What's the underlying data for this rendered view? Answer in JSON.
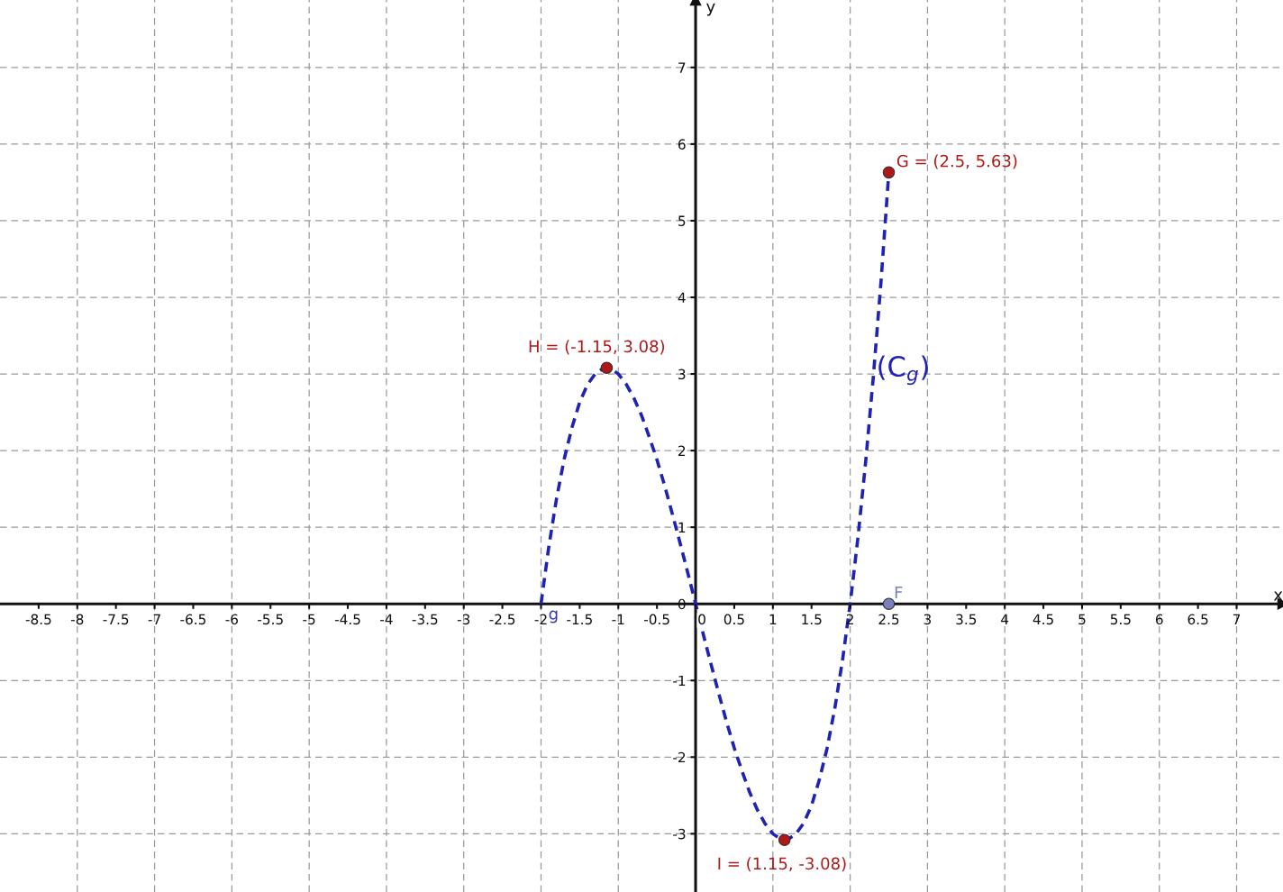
{
  "chart_data": {
    "type": "line",
    "xlabel": "x",
    "ylabel": "y",
    "xlim": [
      -9.0,
      7.6
    ],
    "ylim": [
      -3.76,
      7.88
    ],
    "xticks": [
      -8.5,
      -8,
      -7.5,
      -7,
      -6.5,
      -6,
      -5.5,
      -5,
      -4.5,
      -4,
      -3.5,
      -3,
      -2.5,
      -2,
      -1.5,
      -1,
      -0.5,
      0,
      0.5,
      1,
      1.5,
      2,
      2.5,
      3,
      3.5,
      4,
      4.5,
      5,
      5.5,
      6,
      6.5,
      7
    ],
    "yticks": [
      -3,
      -2,
      -1,
      0,
      1,
      2,
      3,
      4,
      5,
      6,
      7
    ],
    "grid": true,
    "line_style": "dashed",
    "series": [
      {
        "color": "#1f22b4",
        "x": [
          -2.0,
          -1.9,
          -1.8,
          -1.7,
          -1.6,
          -1.5,
          -1.4,
          -1.3,
          -1.2,
          -1.1,
          -1.0,
          -0.9,
          -0.8,
          -0.7,
          -0.6,
          -0.5,
          -0.4,
          -0.3,
          -0.2,
          -0.1,
          0.0,
          0.1,
          0.2,
          0.3,
          0.4,
          0.5,
          0.6,
          0.7,
          0.8,
          0.9,
          1.0,
          1.1,
          1.2,
          1.3,
          1.4,
          1.5,
          1.6,
          1.7,
          1.8,
          1.9,
          2.0,
          2.1,
          2.2,
          2.3,
          2.4,
          2.5
        ],
        "values": [
          0.0,
          0.74,
          1.37,
          1.89,
          2.3,
          2.63,
          2.86,
          3.0,
          3.07,
          3.07,
          3.0,
          2.87,
          2.69,
          2.46,
          2.18,
          1.88,
          1.54,
          1.17,
          0.79,
          0.4,
          0.0,
          -0.4,
          -0.79,
          -1.17,
          -1.54,
          -1.88,
          -2.18,
          -2.46,
          -2.69,
          -2.87,
          -3.0,
          -3.07,
          -3.07,
          -3.0,
          -2.86,
          -2.63,
          -2.3,
          -1.89,
          -1.37,
          -0.74,
          0.0,
          0.86,
          1.85,
          2.97,
          4.22,
          5.63
        ]
      },
      {
        "type": "scatter",
        "color": "#b01818",
        "marker": "circle",
        "x": [
          -1.15,
          2.5,
          1.15
        ],
        "values": [
          3.08,
          5.63,
          -3.08
        ]
      },
      {
        "type": "scatter",
        "color": "#7b7fc0",
        "marker": "circle",
        "x": [
          2.5
        ],
        "values": [
          0
        ]
      }
    ],
    "annotations": [
      {
        "text": "H = (-1.15, 3.08)",
        "x": -1.15,
        "y": 3.08
      },
      {
        "text": "G = (2.5, 5.63)",
        "x": 2.5,
        "y": 5.63
      },
      {
        "text": "I = (1.15, -3.08)",
        "x": 1.15,
        "y": -3.08
      },
      {
        "text": "F",
        "x": 2.5,
        "y": 0
      },
      {
        "text": "g",
        "x": -2.0,
        "y": 0
      },
      "(C$_{g}$)"
    ]
  }
}
